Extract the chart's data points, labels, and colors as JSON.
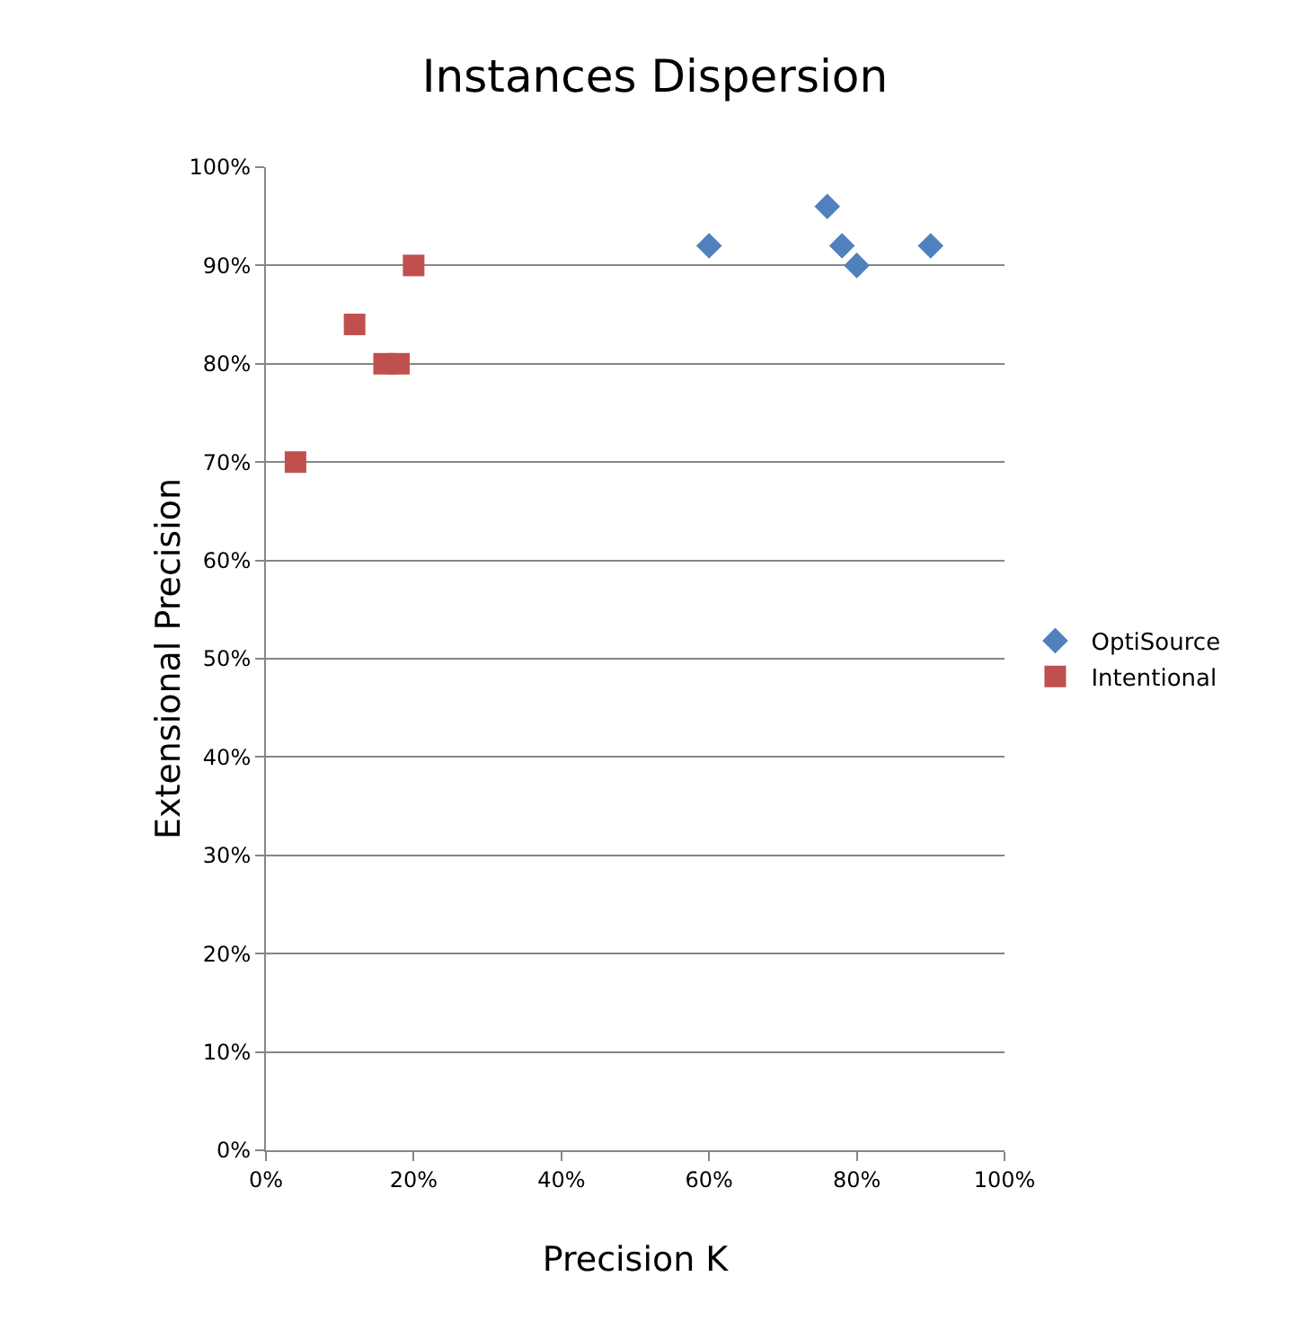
{
  "chart_data": {
    "type": "scatter",
    "title": "Instances Dispersion",
    "xlabel": "Precision K",
    "ylabel": "Extensional Precision",
    "series": [
      {
        "name": "OptiSource",
        "color": "#4f81bd",
        "marker": "diamond",
        "x": [
          60,
          76,
          78,
          80,
          90
        ],
        "values": [
          92,
          96,
          92,
          90,
          92
        ]
      },
      {
        "name": "Intentional",
        "color": "#c0504d",
        "marker": "square",
        "x": [
          4,
          12,
          16,
          18,
          20
        ],
        "values": [
          70,
          84,
          80,
          80,
          90
        ]
      }
    ],
    "xlim": [
      0,
      100
    ],
    "xticks": [
      {
        "value": 0,
        "label": "0%"
      },
      {
        "value": 20,
        "label": "20%"
      },
      {
        "value": 40,
        "label": "40%"
      },
      {
        "value": 60,
        "label": "60%"
      },
      {
        "value": 80,
        "label": "80%"
      },
      {
        "value": 100,
        "label": "100%"
      }
    ],
    "ylim": [
      0,
      100
    ],
    "yticks": [
      {
        "value": 0,
        "label": "0%"
      },
      {
        "value": 10,
        "label": "10%"
      },
      {
        "value": 20,
        "label": "20%"
      },
      {
        "value": 30,
        "label": "30%"
      },
      {
        "value": 40,
        "label": "40%"
      },
      {
        "value": 50,
        "label": "50%"
      },
      {
        "value": 60,
        "label": "60%"
      },
      {
        "value": 70,
        "label": "70%"
      },
      {
        "value": 80,
        "label": "80%"
      },
      {
        "value": 90,
        "label": "90%"
      },
      {
        "value": 100,
        "label": "100%"
      }
    ],
    "grid": "y",
    "legend": "right"
  }
}
